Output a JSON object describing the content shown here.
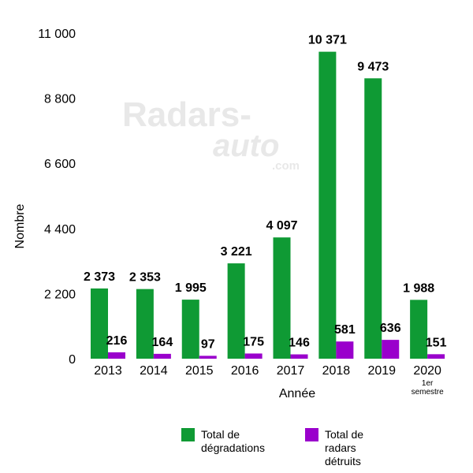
{
  "watermark": {
    "line1": "Radars-",
    "line2": "auto",
    "line3": ".com"
  },
  "chart_data": {
    "type": "bar",
    "categories": [
      "2013",
      "2014",
      "2015",
      "2016",
      "2017",
      "2018",
      "2019",
      "2020"
    ],
    "category_sublabels": [
      "",
      "",
      "",
      "",
      "",
      "",
      "",
      "1er semestre"
    ],
    "series": [
      {
        "name": "Total de dégradations",
        "color": "#0f9a34",
        "values": [
          2373,
          2353,
          1995,
          3221,
          4097,
          10371,
          9473,
          1988
        ],
        "labels": [
          "2 373",
          "2 353",
          "1 995",
          "3 221",
          "4 097",
          "10 371",
          "9 473",
          "1 988"
        ]
      },
      {
        "name": "Total de radars détruits",
        "color": "#9a00cc",
        "values": [
          216,
          164,
          97,
          175,
          146,
          581,
          636,
          151
        ],
        "labels": [
          "216",
          "164",
          "97",
          "175",
          "146",
          "581",
          "636",
          "151"
        ]
      }
    ],
    "xlabel": "Année",
    "ylabel": "Nombre",
    "ylim": [
      0,
      11000
    ],
    "yticks": [
      0,
      2200,
      4400,
      6600,
      8800,
      11000
    ],
    "ytick_labels": [
      "0",
      "2 200",
      "4 400",
      "6 600",
      "8 800",
      "11 000"
    ],
    "grid": false,
    "legend_position": "bottom"
  }
}
